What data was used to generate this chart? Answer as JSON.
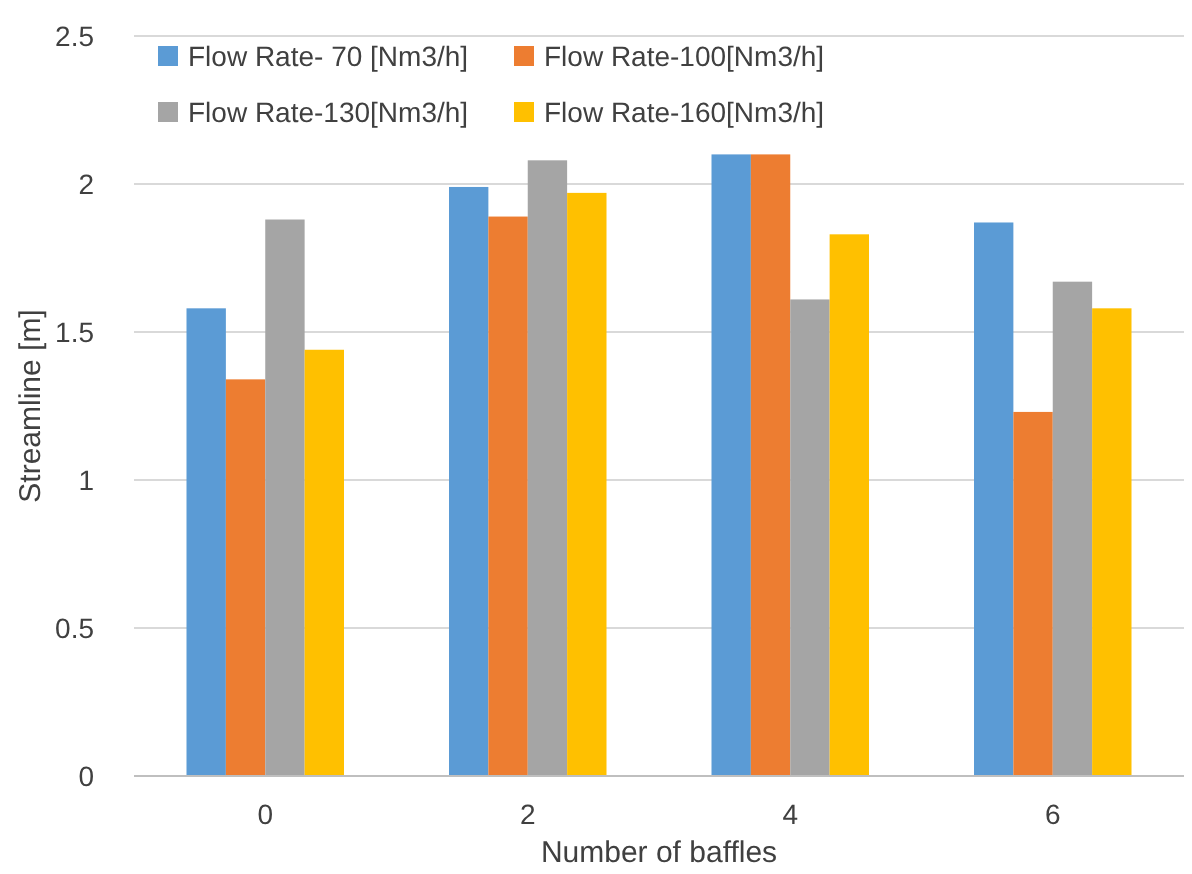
{
  "chart_data": {
    "type": "bar",
    "xlabel": "Number of baffles",
    "ylabel": "Streamline [m]",
    "categories": [
      "0",
      "2",
      "4",
      "6"
    ],
    "series": [
      {
        "name": "Flow Rate- 70 [Nm3/h]",
        "color": "#5b9bd5",
        "values": [
          1.58,
          1.99,
          2.1,
          1.87
        ]
      },
      {
        "name": "Flow Rate-100[Nm3/h]",
        "color": "#ed7d31",
        "values": [
          1.34,
          1.89,
          2.1,
          1.23
        ]
      },
      {
        "name": "Flow Rate-130[Nm3/h]",
        "color": "#a5a5a5",
        "values": [
          1.88,
          2.08,
          1.61,
          1.67
        ]
      },
      {
        "name": "Flow Rate-160[Nm3/h]",
        "color": "#ffc000",
        "values": [
          1.44,
          1.97,
          1.83,
          1.58
        ]
      }
    ],
    "ylim": [
      0,
      2.5
    ],
    "yticks": [
      0,
      0.5,
      1,
      1.5,
      2,
      2.5
    ],
    "grid": "y",
    "legend": "top left"
  }
}
